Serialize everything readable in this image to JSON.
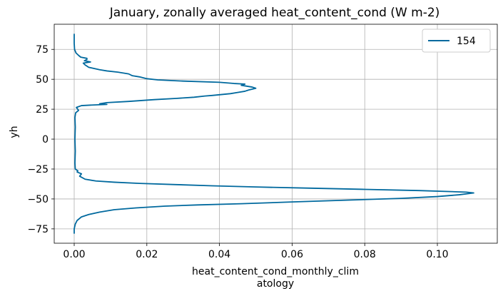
{
  "chart_data": {
    "type": "line",
    "title": "January, zonally averaged heat_content_cond (W m-2)",
    "xlabel_line1": "heat_content_cond_monthly_clim",
    "xlabel_line2": "atology",
    "ylabel": "yh",
    "xlim": [
      -0.0055,
      0.1165
    ],
    "ylim": [
      -87,
      96
    ],
    "xticks": [
      0.0,
      0.02,
      0.04,
      0.06,
      0.08,
      0.1
    ],
    "xtick_labels": [
      "0.00",
      "0.02",
      "0.04",
      "0.06",
      "0.08",
      "0.10"
    ],
    "yticks": [
      -75,
      -50,
      -25,
      0,
      25,
      50,
      75
    ],
    "ytick_labels": [
      "−75",
      "−50",
      "−25",
      "0",
      "25",
      "50",
      "75"
    ],
    "grid": true,
    "legend_position": "top-right",
    "series": [
      {
        "name": "154",
        "color": "#00699e",
        "points": [
          [
            0.0,
            -79
          ],
          [
            0.0,
            -75
          ],
          [
            0.0003,
            -71
          ],
          [
            0.0008,
            -68
          ],
          [
            0.002,
            -65
          ],
          [
            0.004,
            -63
          ],
          [
            0.007,
            -61
          ],
          [
            0.011,
            -59
          ],
          [
            0.017,
            -57.5
          ],
          [
            0.025,
            -56
          ],
          [
            0.034,
            -55
          ],
          [
            0.046,
            -54
          ],
          [
            0.06,
            -52.5
          ],
          [
            0.075,
            -51
          ],
          [
            0.09,
            -49.5
          ],
          [
            0.1,
            -48
          ],
          [
            0.106,
            -46.5
          ],
          [
            0.11,
            -45
          ],
          [
            0.108,
            -44.3
          ],
          [
            0.095,
            -43
          ],
          [
            0.08,
            -42
          ],
          [
            0.065,
            -41
          ],
          [
            0.05,
            -40
          ],
          [
            0.038,
            -39
          ],
          [
            0.028,
            -38
          ],
          [
            0.018,
            -37
          ],
          [
            0.011,
            -36
          ],
          [
            0.006,
            -35
          ],
          [
            0.003,
            -33.5
          ],
          [
            0.0015,
            -31
          ],
          [
            0.002,
            -29
          ],
          [
            0.0008,
            -27.5
          ],
          [
            0.001,
            -26.5
          ],
          [
            0.0003,
            -25
          ],
          [
            0.0002,
            -20
          ],
          [
            0.0003,
            -10
          ],
          [
            0.0002,
            0
          ],
          [
            0.0003,
            10
          ],
          [
            0.0002,
            18
          ],
          [
            0.0004,
            22
          ],
          [
            0.0012,
            24
          ],
          [
            0.0006,
            26.5
          ],
          [
            0.002,
            28
          ],
          [
            0.005,
            28.5
          ],
          [
            0.009,
            29
          ],
          [
            0.007,
            29.5
          ],
          [
            0.009,
            30.5
          ],
          [
            0.015,
            31.5
          ],
          [
            0.022,
            33
          ],
          [
            0.028,
            34
          ],
          [
            0.033,
            35
          ],
          [
            0.036,
            36
          ],
          [
            0.038,
            36.5
          ],
          [
            0.043,
            38
          ],
          [
            0.045,
            39
          ],
          [
            0.047,
            40
          ],
          [
            0.048,
            41
          ],
          [
            0.05,
            42.5
          ],
          [
            0.049,
            43.5
          ],
          [
            0.046,
            45
          ],
          [
            0.047,
            46
          ],
          [
            0.044,
            46.5
          ],
          [
            0.04,
            47.5
          ],
          [
            0.03,
            48.5
          ],
          [
            0.023,
            49.5
          ],
          [
            0.02,
            50.5
          ],
          [
            0.018,
            52
          ],
          [
            0.016,
            53
          ],
          [
            0.015,
            54.5
          ],
          [
            0.012,
            56
          ],
          [
            0.009,
            57
          ],
          [
            0.007,
            58
          ],
          [
            0.004,
            60
          ],
          [
            0.003,
            62
          ],
          [
            0.0025,
            63.5
          ],
          [
            0.0045,
            64.5
          ],
          [
            0.0028,
            65.5
          ],
          [
            0.0035,
            66.5
          ],
          [
            0.0035,
            67.5
          ],
          [
            0.0018,
            68.5
          ],
          [
            0.0012,
            70
          ],
          [
            0.0005,
            72
          ],
          [
            0.0001,
            75
          ],
          [
            0.0,
            80
          ],
          [
            0.0,
            88
          ]
        ]
      }
    ]
  }
}
